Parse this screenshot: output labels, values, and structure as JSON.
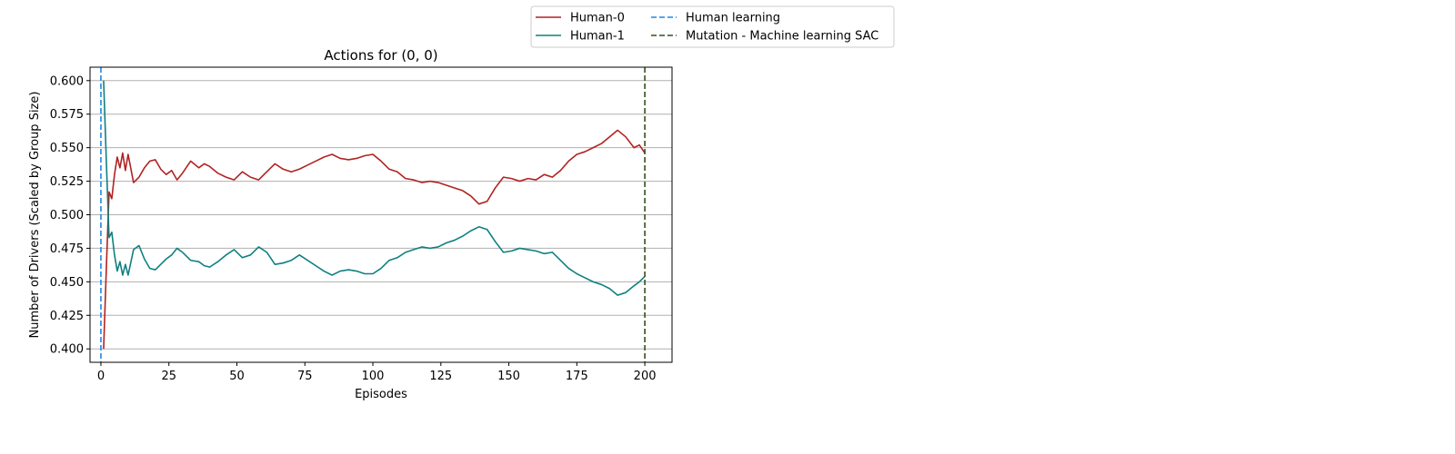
{
  "chart_data": {
    "type": "line",
    "title": "Actions for (0, 0)",
    "xlabel": "Episodes",
    "ylabel": "Number of Drivers (Scaled by Group Size)",
    "xlim": [
      -4,
      210
    ],
    "ylim": [
      0.39,
      0.61
    ],
    "xticks": [
      0,
      25,
      50,
      75,
      100,
      125,
      150,
      175,
      200
    ],
    "yticks": [
      0.4,
      0.425,
      0.45,
      0.475,
      0.5,
      0.525,
      0.55,
      0.575,
      0.6
    ],
    "ytick_labels": [
      "0.400",
      "0.425",
      "0.450",
      "0.475",
      "0.500",
      "0.525",
      "0.550",
      "0.575",
      "0.600"
    ],
    "grid": "horizontal",
    "legend_position": "top, outside plot",
    "series": [
      {
        "name": "Human-0",
        "color": "#b22222",
        "x": [
          1,
          2,
          3,
          4,
          5,
          6,
          7,
          8,
          9,
          10,
          12,
          14,
          16,
          18,
          20,
          22,
          24,
          26,
          28,
          30,
          33,
          36,
          38,
          40,
          43,
          46,
          49,
          52,
          55,
          58,
          61,
          64,
          67,
          70,
          73,
          76,
          79,
          82,
          85,
          88,
          91,
          94,
          97,
          100,
          103,
          106,
          109,
          112,
          115,
          118,
          121,
          124,
          127,
          130,
          133,
          136,
          139,
          142,
          145,
          148,
          151,
          154,
          157,
          160,
          163,
          166,
          169,
          172,
          175,
          178,
          181,
          184,
          187,
          190,
          193,
          196,
          198,
          200
        ],
        "values": [
          0.4,
          0.46,
          0.517,
          0.512,
          0.53,
          0.543,
          0.535,
          0.546,
          0.533,
          0.545,
          0.524,
          0.528,
          0.535,
          0.54,
          0.541,
          0.534,
          0.53,
          0.533,
          0.526,
          0.531,
          0.54,
          0.535,
          0.538,
          0.536,
          0.531,
          0.528,
          0.526,
          0.532,
          0.528,
          0.526,
          0.532,
          0.538,
          0.534,
          0.532,
          0.534,
          0.537,
          0.54,
          0.543,
          0.545,
          0.542,
          0.541,
          0.542,
          0.544,
          0.545,
          0.54,
          0.534,
          0.532,
          0.527,
          0.526,
          0.524,
          0.525,
          0.524,
          0.522,
          0.52,
          0.518,
          0.514,
          0.508,
          0.51,
          0.52,
          0.528,
          0.527,
          0.525,
          0.527,
          0.526,
          0.53,
          0.528,
          0.533,
          0.54,
          0.545,
          0.547,
          0.55,
          0.553,
          0.558,
          0.563,
          0.558,
          0.55,
          0.552,
          0.546
        ]
      },
      {
        "name": "Human-1",
        "color": "#0f8080",
        "x": [
          1,
          2,
          3,
          4,
          5,
          6,
          7,
          8,
          9,
          10,
          12,
          14,
          16,
          18,
          20,
          22,
          24,
          26,
          28,
          30,
          33,
          36,
          38,
          40,
          43,
          46,
          49,
          52,
          55,
          58,
          61,
          64,
          67,
          70,
          73,
          76,
          79,
          82,
          85,
          88,
          91,
          94,
          97,
          100,
          103,
          106,
          109,
          112,
          115,
          118,
          121,
          124,
          127,
          130,
          133,
          136,
          139,
          142,
          145,
          148,
          151,
          154,
          157,
          160,
          163,
          166,
          169,
          172,
          175,
          178,
          181,
          184,
          187,
          190,
          193,
          196,
          198,
          200
        ],
        "values": [
          0.6,
          0.54,
          0.483,
          0.487,
          0.47,
          0.458,
          0.465,
          0.455,
          0.463,
          0.455,
          0.474,
          0.477,
          0.467,
          0.46,
          0.459,
          0.463,
          0.467,
          0.47,
          0.475,
          0.472,
          0.466,
          0.465,
          0.462,
          0.461,
          0.465,
          0.47,
          0.474,
          0.468,
          0.47,
          0.476,
          0.472,
          0.463,
          0.464,
          0.466,
          0.47,
          0.466,
          0.462,
          0.458,
          0.455,
          0.458,
          0.459,
          0.458,
          0.456,
          0.456,
          0.46,
          0.466,
          0.468,
          0.472,
          0.474,
          0.476,
          0.475,
          0.476,
          0.479,
          0.481,
          0.484,
          0.488,
          0.491,
          0.489,
          0.48,
          0.472,
          0.473,
          0.475,
          0.474,
          0.473,
          0.471,
          0.472,
          0.466,
          0.46,
          0.456,
          0.453,
          0.45,
          0.448,
          0.445,
          0.44,
          0.442,
          0.447,
          0.45,
          0.454
        ]
      }
    ],
    "vlines": [
      {
        "name": "Human learning",
        "x": 0,
        "color": "#1e88e5",
        "style": "dashed"
      },
      {
        "name": "Mutation - Machine learning SAC",
        "x": 200,
        "color": "#33501a",
        "style": "dashed"
      }
    ]
  }
}
